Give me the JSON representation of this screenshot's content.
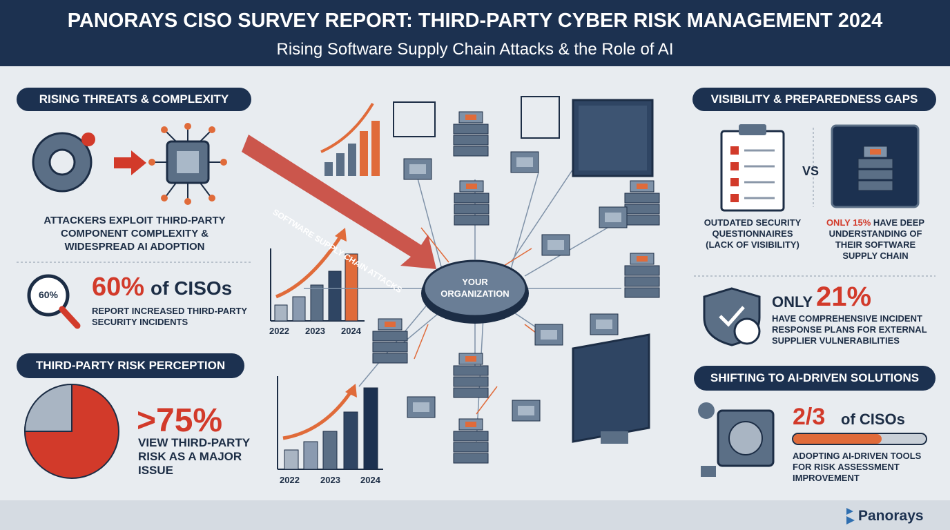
{
  "header": {
    "title": "PANORAYS CISO SURVEY REPORT: THIRD-PARTY CYBER RISK MANAGEMENT 2024",
    "subtitle": "Rising Software Supply Chain Attacks & the Role of AI"
  },
  "threats": {
    "heading": "RISING THREATS & COMPLEXITY",
    "text": "ATTACKERS EXPLOIT THIRD-PARTY COMPONENT COMPLEXITY & WIDESPREAD AI ADOPTION",
    "badge": "60%",
    "stat": "60%",
    "stat_suffix": "of CISOs",
    "stat_text": "REPORT INCREASED THIRD-PARTY SECURITY INCIDENTS"
  },
  "perception": {
    "heading": "THIRD-PARTY RISK PERCEPTION",
    "stat": ">75%",
    "text": "VIEW THIRD-PARTY RISK AS A MAJOR ISSUE"
  },
  "top_chart": {
    "labels": [
      "2022",
      "2023",
      "2024"
    ]
  },
  "bottom_chart": {
    "labels": [
      "2022",
      "2023",
      "2024"
    ]
  },
  "center": {
    "arrow_label": "SOFTWARE SUPPLY CHAIN ATTACKS",
    "hub": "YOUR ORGANIZATION"
  },
  "visibility": {
    "heading": "VISIBILITY & PREPAREDNESS GAPS",
    "left_text": "OUTDATED SECURITY QUESTIONNAIRES (LACK OF VISIBILITY)",
    "vs": "VS",
    "right_highlight": "ONLY 15%",
    "right_text": "HAVE DEEP UNDERSTANDING OF THEIR SOFTWARE SUPPLY CHAIN",
    "only": "ONLY",
    "stat": "21%",
    "stat_text": "HAVE COMPREHENSIVE INCIDENT RESPONSE PLANS FOR EXTERNAL SUPPLIER VULNERABILITIES"
  },
  "ai": {
    "heading": "SHIFTING TO AI-DRIVEN SOLUTIONS",
    "stat": "2/3",
    "stat_suffix": "of CISOs",
    "text": "ADOPTING AI-DRIVEN TOOLS FOR RISK ASSESSMENT IMPROVEMENT"
  },
  "brand": "Panorays"
}
